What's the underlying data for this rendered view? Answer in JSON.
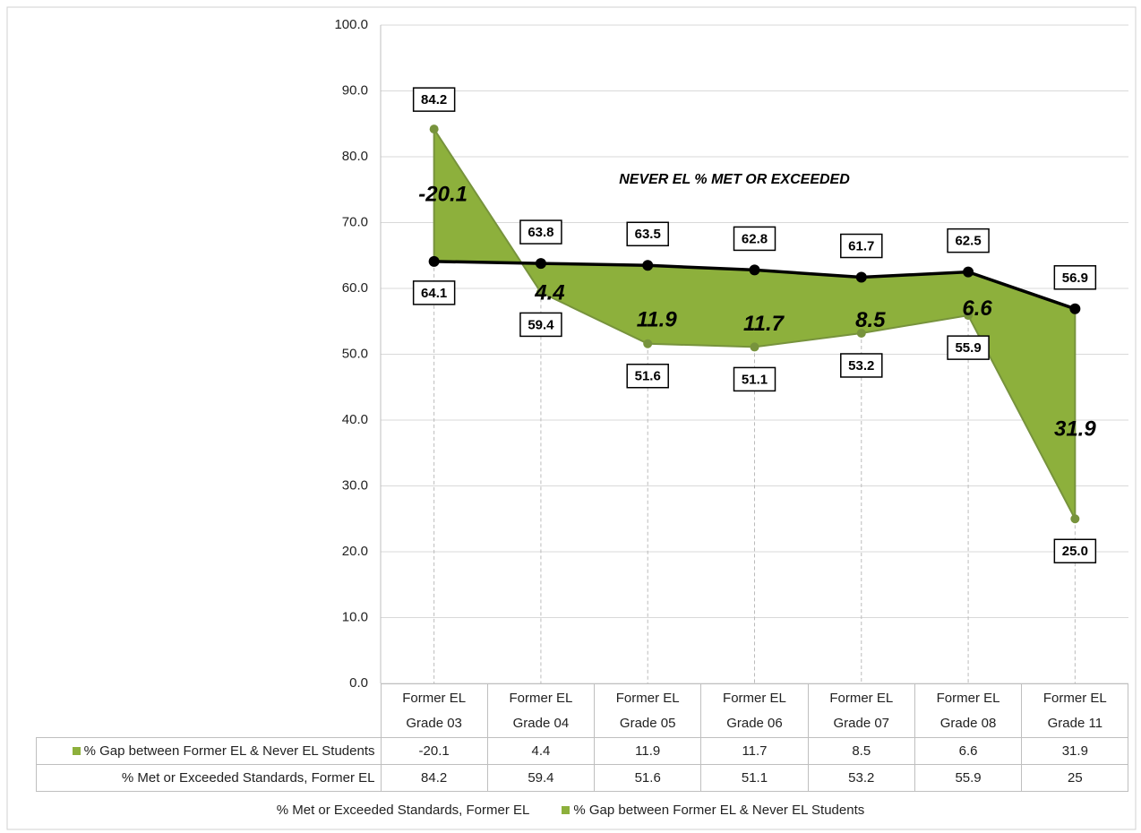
{
  "chart_data": {
    "type": "line",
    "annotation": "NEVER EL % MET OR EXCEEDED",
    "categories": [
      "Former EL Grade 03",
      "Former EL Grade 04",
      "Former EL Grade 05",
      "Former EL Grade 06",
      "Former EL Grade 07",
      "Former EL Grade 08",
      "Former EL Grade 11"
    ],
    "series": [
      {
        "name": "% Met or Exceeded Standards, Former EL",
        "color": "#77933c",
        "values": [
          84.2,
          59.4,
          51.6,
          51.1,
          53.2,
          55.9,
          25
        ],
        "value_labels": [
          "84.2",
          "59.4",
          "51.6",
          "51.1",
          "53.2",
          "55.9",
          "25.0"
        ]
      },
      {
        "name": "% Gap between Former EL & Never EL Students",
        "color": "#8db03c",
        "values": [
          -20.1,
          4.4,
          11.9,
          11.7,
          8.5,
          6.6,
          31.9
        ]
      },
      {
        "color": "#000000",
        "values": [
          64.1,
          63.8,
          63.5,
          62.8,
          61.7,
          62.5,
          56.9
        ]
      }
    ],
    "ylim": [
      0,
      100
    ],
    "yticks": [
      {
        "value": 0,
        "label": "0.0"
      },
      {
        "value": 10,
        "label": "10.0"
      },
      {
        "value": 20,
        "label": "20.0"
      },
      {
        "value": 30,
        "label": "30.0"
      },
      {
        "value": 40,
        "label": "40.0"
      },
      {
        "value": 50,
        "label": "50.0"
      },
      {
        "value": 60,
        "label": "60.0"
      },
      {
        "value": 70,
        "label": "70.0"
      },
      {
        "value": 80,
        "label": "80.0"
      },
      {
        "value": 90,
        "label": "90.0"
      },
      {
        "value": 100,
        "label": "100.0"
      }
    ],
    "grid": true
  }
}
